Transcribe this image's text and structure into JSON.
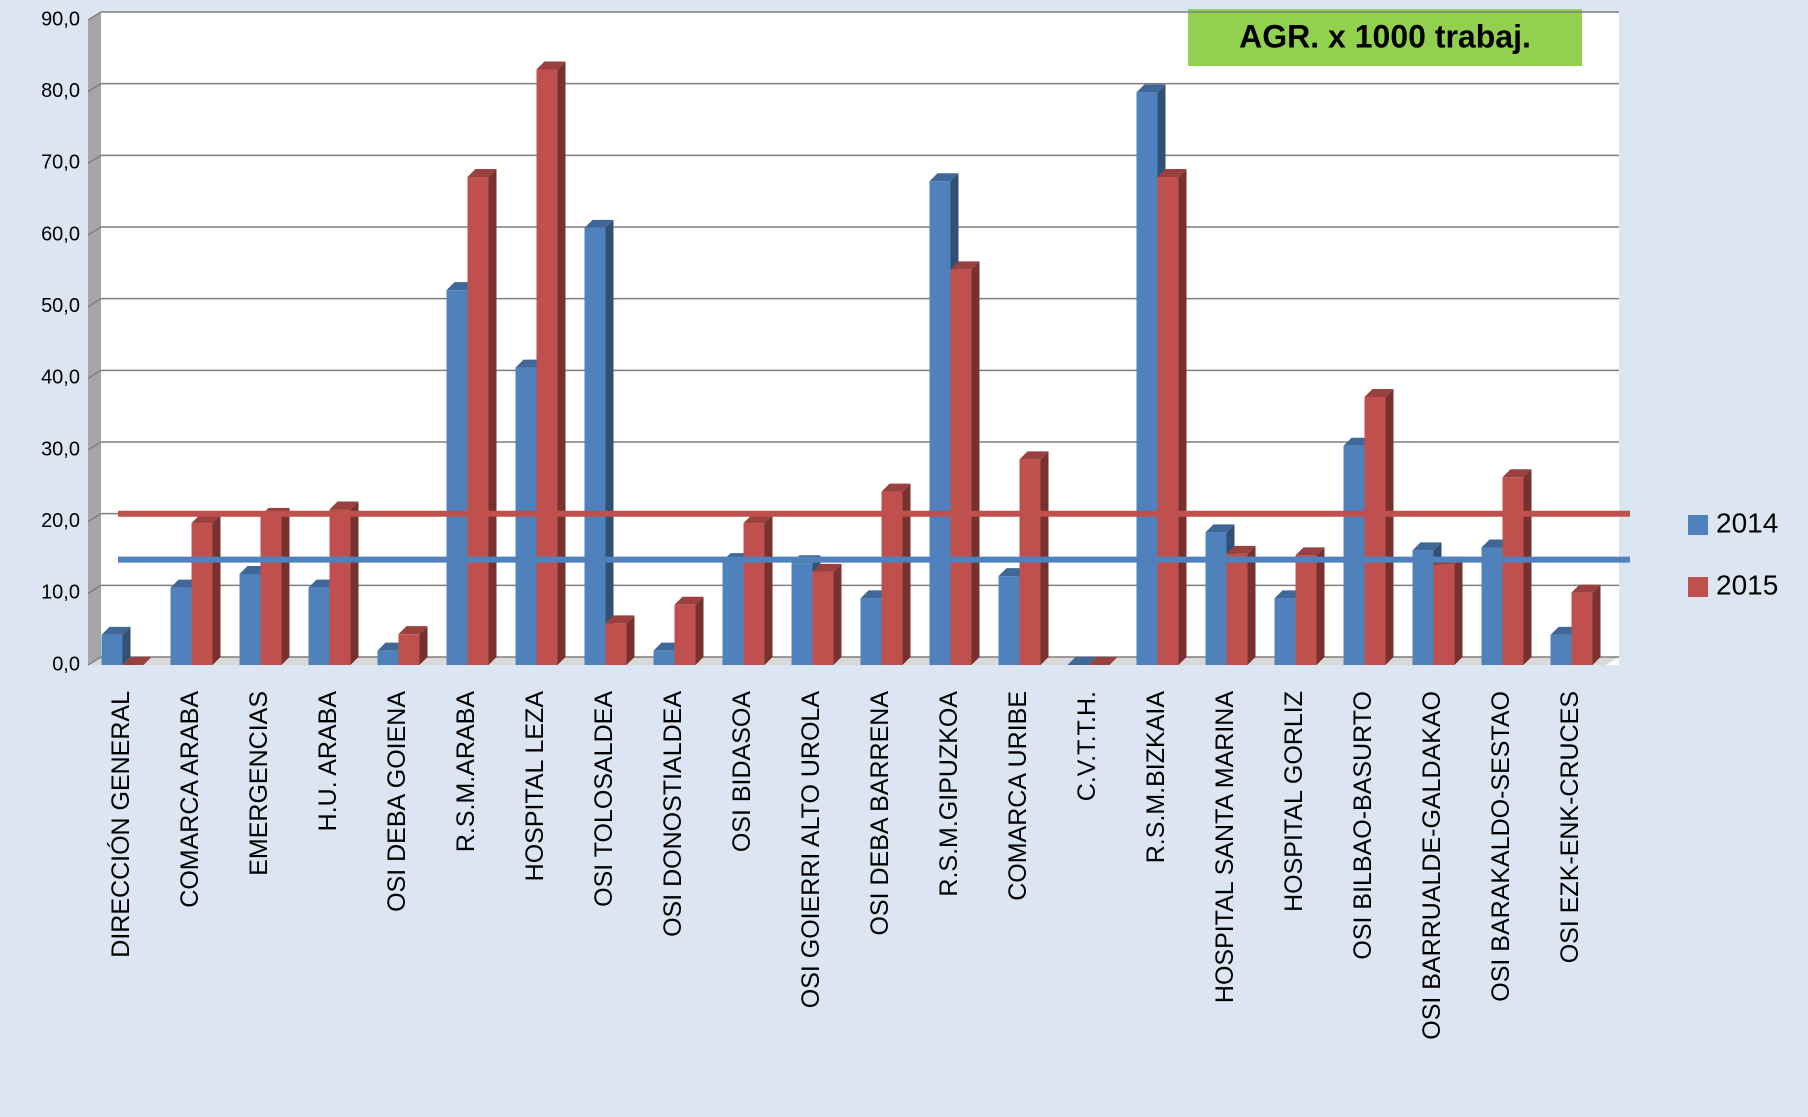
{
  "chart_data": {
    "type": "bar3d",
    "annotation": "AGR. x 1000 trabaj.",
    "categories": [
      "DIRECCIÓN GENERAL",
      "COMARCA ARABA",
      "EMERGENCIAS",
      "H.U. ARABA",
      "OSI DEBA GOIENA",
      "R.S.M.ARABA",
      "HOSPITAL LEZA",
      "OSI TOLOSALDEA",
      "OSI DONOSTIALDEA",
      "OSI BIDASOA",
      "OSI GOIERRI ALTO UROLA",
      "OSI DEBA BARRENA",
      "R.S.M.GIPUZKOA",
      "COMARCA URIBE",
      "C.V.T.T.H.",
      "R.S.M.BIZKAIA",
      "HOSPITAL SANTA MARINA",
      "HOSPITAL GORLIZ",
      "OSI BILBAO-BASURTO",
      "OSI BARRUALDE-GALDAKAO",
      "OSI BARAKALDO-SESTAO",
      "OSI EZK-ENK-CRUCES"
    ],
    "series": [
      {
        "name": "2014",
        "color": "#4f81bd",
        "values": [
          4.2,
          10.8,
          12.7,
          10.8,
          2.0,
          52.3,
          41.5,
          61.0,
          2.0,
          14.5,
          14.2,
          9.3,
          67.5,
          12.4,
          0,
          79.9,
          18.5,
          9.3,
          30.6,
          16.0,
          16.4,
          4.2
        ]
      },
      {
        "name": "2015",
        "color": "#c0504d",
        "values": [
          0,
          19.8,
          20.8,
          21.7,
          4.3,
          68.1,
          83.1,
          5.8,
          8.4,
          19.8,
          13.0,
          24.2,
          55.2,
          28.7,
          0,
          68.1,
          15.5,
          15.3,
          37.4,
          14.0,
          26.2,
          10.1
        ]
      }
    ],
    "reference_lines": [
      {
        "value": 21.1,
        "color": "#c0504d"
      },
      {
        "value": 14.7,
        "color": "#4f81bd"
      }
    ],
    "ylim": [
      0,
      90
    ],
    "yticks": [
      {
        "value": 0,
        "label": "0,0"
      },
      {
        "value": 10,
        "label": "10,0"
      },
      {
        "value": 20,
        "label": "20,0"
      },
      {
        "value": 30,
        "label": "30,0"
      },
      {
        "value": 40,
        "label": "40,0"
      },
      {
        "value": 50,
        "label": "50,0"
      },
      {
        "value": 60,
        "label": "60,0"
      },
      {
        "value": 70,
        "label": "70,0"
      },
      {
        "value": 80,
        "label": "80,0"
      },
      {
        "value": 90,
        "label": "90,0"
      }
    ],
    "grid": true
  }
}
